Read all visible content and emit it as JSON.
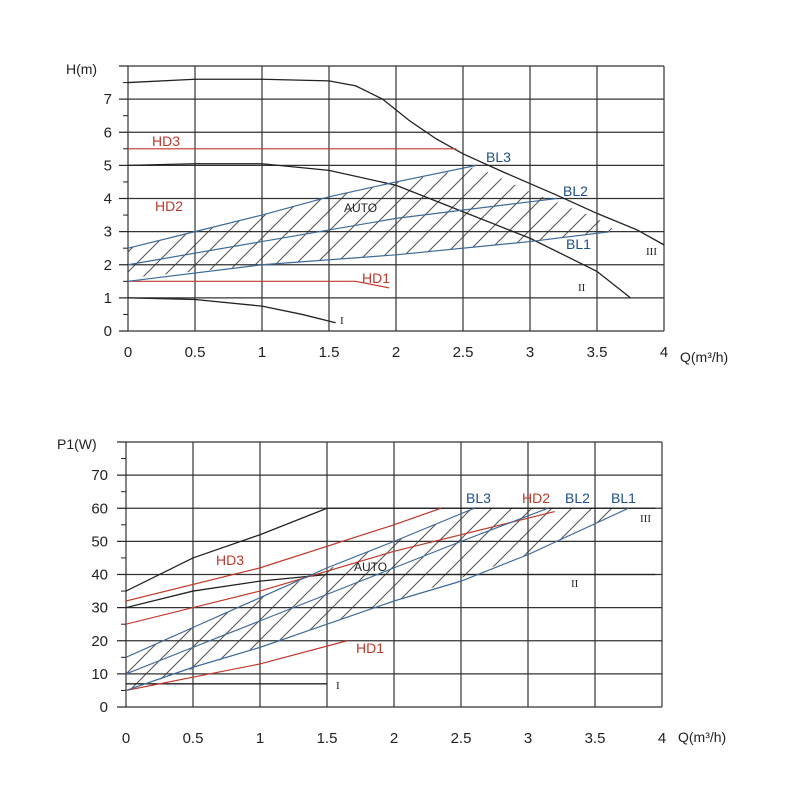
{
  "colors": {
    "grid": "#333333",
    "axis": "#222222",
    "text": "#222222",
    "red": "#c0392b",
    "blue": "#1f4e8c",
    "black_curve": "#222222",
    "blue_curve": "#3d6a9a",
    "red_curve": "#c0392b"
  },
  "chart_data": [
    {
      "type": "line",
      "ylabel": "H(m)",
      "xlabel": "Q(m³/h)",
      "xlim": [
        0,
        4
      ],
      "ylim": [
        0,
        8
      ],
      "x_ticks": [
        "0",
        "0.5",
        "1",
        "1.5",
        "2",
        "2.5",
        "3",
        "3.5",
        "4"
      ],
      "y_ticks": [
        "0",
        "1",
        "2",
        "3",
        "4",
        "5",
        "6",
        "7"
      ],
      "grid": true,
      "series": [
        {
          "name": "III",
          "color": "black",
          "points": [
            [
              0,
              7.5
            ],
            [
              0.5,
              7.6
            ],
            [
              1,
              7.6
            ],
            [
              1.5,
              7.55
            ],
            [
              1.7,
              7.4
            ],
            [
              1.9,
              7.0
            ],
            [
              2.1,
              6.35
            ],
            [
              2.3,
              5.8
            ],
            [
              2.5,
              5.35
            ],
            [
              2.8,
              4.8
            ],
            [
              3.2,
              4.1
            ],
            [
              3.5,
              3.55
            ],
            [
              3.8,
              3.05
            ],
            [
              4,
              2.6
            ]
          ]
        },
        {
          "name": "II",
          "color": "black",
          "points": [
            [
              0,
              5.0
            ],
            [
              0.5,
              5.05
            ],
            [
              1,
              5.05
            ],
            [
              1.5,
              4.85
            ],
            [
              2,
              4.4
            ],
            [
              2.5,
              3.6
            ],
            [
              3,
              2.8
            ],
            [
              3.5,
              1.8
            ],
            [
              3.75,
              1.0
            ]
          ]
        },
        {
          "name": "I",
          "color": "black",
          "points": [
            [
              0,
              1.0
            ],
            [
              0.5,
              0.95
            ],
            [
              1,
              0.75
            ],
            [
              1.3,
              0.5
            ],
            [
              1.55,
              0.25
            ]
          ]
        },
        {
          "name": "HD3",
          "color": "red",
          "points": [
            [
              0,
              5.5
            ],
            [
              2.45,
              5.5
            ]
          ]
        },
        {
          "name": "HD1",
          "color": "red",
          "points": [
            [
              0,
              1.5
            ],
            [
              1.7,
              1.5
            ],
            [
              1.95,
              1.3
            ]
          ]
        },
        {
          "name": "BL3",
          "color": "blue",
          "points": [
            [
              0,
              2.5
            ],
            [
              0.5,
              3.0
            ],
            [
              1,
              3.5
            ],
            [
              1.5,
              4.05
            ],
            [
              2,
              4.5
            ],
            [
              2.6,
              5.0
            ]
          ]
        },
        {
          "name": "BL2",
          "color": "blue",
          "points": [
            [
              0,
              2.0
            ],
            [
              1,
              2.7
            ],
            [
              2,
              3.4
            ],
            [
              3,
              3.9
            ],
            [
              3.2,
              4.0
            ]
          ]
        },
        {
          "name": "BL1",
          "color": "blue",
          "points": [
            [
              0,
              1.5
            ],
            [
              1,
              2.0
            ],
            [
              2,
              2.3
            ],
            [
              3,
              2.7
            ],
            [
              3.6,
              3.0
            ]
          ]
        }
      ],
      "hatched_region": [
        [
          0,
          1.6
        ],
        [
          1,
          2.0
        ],
        [
          2,
          2.3
        ],
        [
          3,
          2.7
        ],
        [
          3.65,
          3.0
        ],
        [
          3.5,
          3.4
        ],
        [
          3,
          4.2
        ],
        [
          2.6,
          4.95
        ],
        [
          2,
          4.5
        ],
        [
          1.5,
          4.05
        ],
        [
          1,
          3.5
        ],
        [
          0.5,
          3.0
        ],
        [
          0,
          2.5
        ]
      ],
      "labels": {
        "HD3": "HD3",
        "HD2": "HD2",
        "HD1": "HD1",
        "BL3": "BL3",
        "BL2": "BL2",
        "BL1": "BL1",
        "AUTO": "AUTO",
        "I": "I",
        "II": "II",
        "III": "III"
      }
    },
    {
      "type": "line",
      "ylabel": "P1(W)",
      "xlabel": "Q(m³/h)",
      "xlim": [
        0,
        4
      ],
      "ylim": [
        0,
        80
      ],
      "x_ticks": [
        "0",
        "0.5",
        "1",
        "1.5",
        "2",
        "2.5",
        "3",
        "3.5",
        "4"
      ],
      "y_ticks": [
        "0",
        "10",
        "20",
        "30",
        "40",
        "50",
        "60",
        "70"
      ],
      "grid": true,
      "series": [
        {
          "name": "III",
          "color": "black",
          "points": [
            [
              0,
              35
            ],
            [
              0.5,
              45
            ],
            [
              1,
              52
            ],
            [
              1.5,
              60
            ],
            [
              3.95,
              60
            ]
          ]
        },
        {
          "name": "II",
          "color": "black",
          "points": [
            [
              0,
              30
            ],
            [
              0.5,
              35
            ],
            [
              1,
              38
            ],
            [
              1.5,
              40
            ],
            [
              3.95,
              40
            ]
          ]
        },
        {
          "name": "I",
          "color": "black",
          "points": [
            [
              0,
              7
            ],
            [
              1.5,
              7
            ]
          ]
        },
        {
          "name": "HD3",
          "color": "red",
          "points": [
            [
              0,
              32
            ],
            [
              1,
              42
            ],
            [
              2,
              55
            ],
            [
              2.35,
              60
            ]
          ]
        },
        {
          "name": "HD2",
          "color": "red",
          "points": [
            [
              0,
              25
            ],
            [
              1,
              35
            ],
            [
              2,
              47
            ],
            [
              3.2,
              59
            ]
          ]
        },
        {
          "name": "HD1",
          "color": "red",
          "points": [
            [
              0,
              5
            ],
            [
              0.5,
              9
            ],
            [
              1,
              13
            ],
            [
              1.65,
              20
            ]
          ]
        },
        {
          "name": "BL3",
          "color": "blue",
          "points": [
            [
              0,
              15
            ],
            [
              0.5,
              24
            ],
            [
              1,
              33
            ],
            [
              1.5,
              42
            ],
            [
              2,
              50
            ],
            [
              2.6,
              60
            ]
          ]
        },
        {
          "name": "BL2",
          "color": "blue",
          "points": [
            [
              0,
              10
            ],
            [
              0.5,
              18
            ],
            [
              1,
              26
            ],
            [
              1.5,
              34
            ],
            [
              2,
              42
            ],
            [
              2.5,
              50
            ],
            [
              3.15,
              60
            ]
          ]
        },
        {
          "name": "BL1",
          "color": "blue",
          "points": [
            [
              0,
              5
            ],
            [
              0.5,
              12
            ],
            [
              1,
              18
            ],
            [
              1.5,
              25
            ],
            [
              2,
              32
            ],
            [
              2.5,
              38
            ],
            [
              3,
              46
            ],
            [
              3.75,
              60
            ]
          ]
        }
      ],
      "hatched_region": [
        [
          0,
          5
        ],
        [
          1,
          18
        ],
        [
          2,
          32
        ],
        [
          3,
          46
        ],
        [
          3.75,
          60
        ],
        [
          2.6,
          60
        ],
        [
          2,
          50
        ],
        [
          1,
          33
        ],
        [
          0,
          15
        ]
      ],
      "labels": {
        "HD3": "HD3",
        "HD2": "HD2",
        "HD1": "HD1",
        "BL3": "BL3",
        "BL2": "BL2",
        "BL1": "BL1",
        "AUTO": "AUTO",
        "I": "I",
        "II": "II",
        "III": "III"
      }
    }
  ]
}
